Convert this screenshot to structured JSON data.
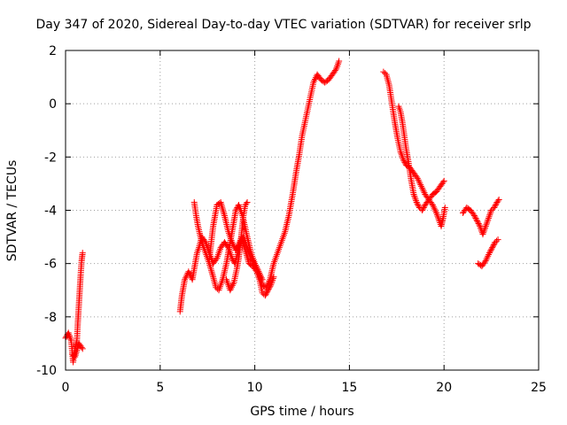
{
  "chart_data": {
    "type": "scatter",
    "title": "Day 347 of 2020, Sidereal Day-to-day VTEC variation (SDTVAR) for receiver srlp",
    "xlabel": "GPS time / hours",
    "ylabel": "SDTVAR / TECUs",
    "xlim": [
      0,
      25
    ],
    "ylim": [
      -10,
      2
    ],
    "xticks": [
      0,
      5,
      10,
      15,
      20,
      25
    ],
    "yticks": [
      -10,
      -8,
      -6,
      -4,
      -2,
      0,
      2
    ],
    "grid": true,
    "marker": "+",
    "color": "#ff0000",
    "segments": [
      {
        "x": [
          0.0,
          0.15,
          0.3,
          0.4,
          0.5,
          0.6,
          0.65,
          0.7,
          0.75,
          0.8,
          0.85,
          0.9
        ],
        "y": [
          -8.8,
          -8.6,
          -8.9,
          -9.7,
          -9.2,
          -8.9,
          -8.2,
          -7.6,
          -7.0,
          -6.4,
          -5.9,
          -5.6
        ]
      },
      {
        "x": [
          0.35,
          0.5,
          0.7,
          0.9
        ],
        "y": [
          -9.4,
          -9.5,
          -9.0,
          -9.2
        ]
      },
      {
        "x": [
          6.05,
          6.15,
          6.3,
          6.5,
          6.7,
          6.85,
          6.95,
          7.05,
          7.2,
          7.4,
          7.6,
          7.8,
          8.0,
          8.2,
          8.4,
          8.6,
          8.8,
          8.95,
          9.1,
          9.25,
          9.4,
          9.6,
          9.8,
          10.0,
          10.2,
          10.4,
          10.6,
          10.8,
          11.0,
          11.2,
          11.4,
          11.6,
          11.8,
          12.0,
          12.2,
          12.35,
          12.5,
          12.65,
          12.8,
          12.95,
          13.1,
          13.3,
          13.5,
          13.7,
          13.9,
          14.1,
          14.3,
          14.45
        ],
        "y": [
          -7.8,
          -7.2,
          -6.6,
          -6.3,
          -6.6,
          -6.0,
          -5.6,
          -5.4,
          -5.0,
          -5.2,
          -5.6,
          -6.0,
          -5.8,
          -5.4,
          -5.2,
          -5.4,
          -5.8,
          -6.0,
          -5.6,
          -5.2,
          -5.0,
          -5.4,
          -5.8,
          -6.0,
          -6.3,
          -6.8,
          -6.9,
          -6.6,
          -6.0,
          -5.6,
          -5.2,
          -4.8,
          -4.2,
          -3.4,
          -2.5,
          -1.9,
          -1.2,
          -0.7,
          -0.2,
          0.3,
          0.8,
          1.1,
          0.9,
          0.8,
          0.9,
          1.1,
          1.3,
          1.6
        ]
      },
      {
        "x": [
          6.8,
          6.9,
          7.0,
          7.2,
          7.4,
          7.6,
          7.8,
          7.95,
          8.1,
          8.3,
          8.5,
          8.7,
          8.85,
          9.0,
          9.15,
          9.35,
          9.6,
          9.8,
          10.0,
          10.2,
          10.4
        ],
        "y": [
          -3.7,
          -4.2,
          -4.6,
          -5.2,
          -5.6,
          -6.0,
          -6.5,
          -6.9,
          -7.0,
          -6.6,
          -6.0,
          -5.2,
          -4.6,
          -4.0,
          -3.8,
          -4.2,
          -5.0,
          -5.6,
          -6.0,
          -6.3,
          -6.6
        ]
      },
      {
        "x": [
          7.6,
          7.8,
          8.0,
          8.2,
          8.4,
          8.6,
          8.8,
          9.0,
          9.15,
          9.3,
          9.5,
          9.7,
          9.9,
          10.1,
          10.25,
          10.4,
          10.55,
          10.7,
          10.85,
          11.0
        ],
        "y": [
          -5.8,
          -4.6,
          -3.8,
          -3.7,
          -4.2,
          -4.8,
          -5.2,
          -5.5,
          -5.3,
          -5.0,
          -5.5,
          -6.0,
          -6.1,
          -6.3,
          -6.6,
          -7.1,
          -7.2,
          -7.0,
          -6.8,
          -6.5
        ]
      },
      {
        "x": [
          8.5,
          8.7,
          8.9,
          9.05,
          9.15,
          9.25,
          9.4,
          9.5,
          9.6
        ],
        "y": [
          -6.6,
          -7.0,
          -6.7,
          -6.2,
          -5.8,
          -5.2,
          -4.2,
          -3.8,
          -3.7
        ]
      },
      {
        "x": [
          16.8,
          16.95,
          17.1,
          17.25,
          17.4,
          17.55,
          17.7,
          17.85,
          18.0,
          18.2,
          18.4,
          18.6,
          18.8,
          19.0,
          19.2,
          19.4,
          19.6,
          19.8,
          20.0
        ],
        "y": [
          1.2,
          1.1,
          0.7,
          0.0,
          -0.7,
          -1.3,
          -1.8,
          -2.1,
          -2.3,
          -2.4,
          -2.6,
          -2.8,
          -3.1,
          -3.4,
          -3.6,
          -3.4,
          -3.3,
          -3.1,
          -2.9
        ]
      },
      {
        "x": [
          17.6,
          17.7,
          17.8,
          17.9,
          18.0,
          18.1,
          18.25,
          18.4,
          18.55,
          18.7,
          18.85,
          19.0,
          19.2,
          19.4,
          19.6,
          19.75,
          19.85,
          19.95,
          20.05
        ],
        "y": [
          -0.1,
          -0.3,
          -0.7,
          -1.2,
          -1.7,
          -2.1,
          -2.8,
          -3.4,
          -3.7,
          -3.9,
          -4.0,
          -3.8,
          -3.6,
          -3.8,
          -4.1,
          -4.4,
          -4.6,
          -4.3,
          -3.9
        ]
      },
      {
        "x": [
          21.0,
          21.2,
          21.4,
          21.6,
          21.75,
          21.9,
          22.05,
          22.2,
          22.35,
          22.5,
          22.65,
          22.8,
          22.9
        ],
        "y": [
          -4.1,
          -3.9,
          -4.0,
          -4.2,
          -4.4,
          -4.6,
          -4.9,
          -4.6,
          -4.3,
          -4.0,
          -3.9,
          -3.7,
          -3.6
        ]
      },
      {
        "x": [
          21.8,
          22.0,
          22.2,
          22.4,
          22.55,
          22.7,
          22.85
        ],
        "y": [
          -6.0,
          -6.1,
          -5.9,
          -5.6,
          -5.4,
          -5.2,
          -5.1
        ]
      }
    ]
  }
}
